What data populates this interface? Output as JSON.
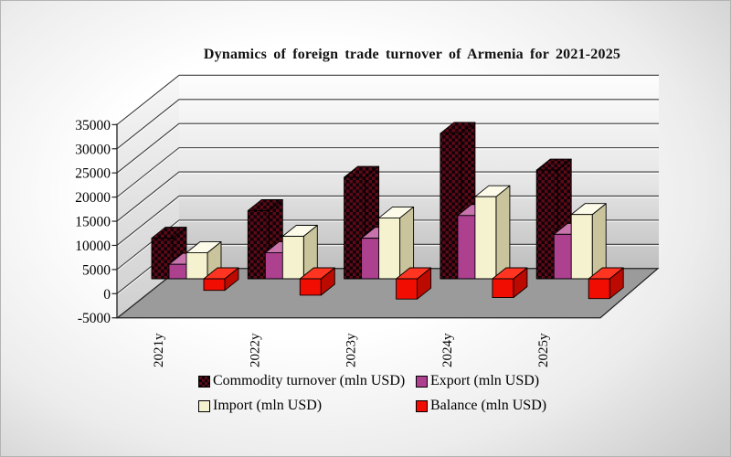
{
  "chart_data": {
    "type": "bar",
    "is_3d": true,
    "title": "Dynamics of foreign trade turnover of Armenia for 2021-2025",
    "categories": [
      "2021y",
      "2022y",
      "2023y",
      "2024y",
      "2025y"
    ],
    "series": [
      {
        "key": "commodity-turnover",
        "name": "Commodity turnover (mln USD)",
        "values": [
          8400,
          14100,
          21000,
          30100,
          22500
        ],
        "style": "checkered",
        "front": "#4f060e",
        "top": "#4f060e",
        "side": "#4f060e"
      },
      {
        "key": "export",
        "name": "Export (mln USD)",
        "values": [
          3000,
          5400,
          8400,
          13100,
          9200
        ],
        "style": "solid",
        "front": "#ad4190",
        "top": "#c873ac",
        "side": "#7c2d67"
      },
      {
        "key": "import",
        "name": "Import (mln USD)",
        "values": [
          5400,
          8800,
          12600,
          17000,
          13300
        ],
        "style": "solid",
        "front": "#f5f2cf",
        "top": "#fcfae8",
        "side": "#c9c49b"
      },
      {
        "key": "balance",
        "name": "Balance (mln USD)",
        "values": [
          -2400,
          -3400,
          -4200,
          -3900,
          -4100
        ],
        "style": "solid",
        "front": "#f20d02",
        "top": "#ff3522",
        "side": "#bd0a00"
      }
    ],
    "y_axis": {
      "min": -5000,
      "max": 35000,
      "step": 5000,
      "tick_labels": [
        "35000",
        "30000",
        "25000",
        "20000",
        "15000",
        "10000",
        "5000",
        "0",
        "-5000"
      ]
    },
    "legend_position": "bottom",
    "grid": true,
    "unit": "mln USD"
  },
  "colors": {
    "checker_dark": "#10020a",
    "checker_red": "#5c0a14",
    "floor": "#9b9b9b",
    "gridline": "#3c3c3c",
    "axis": "#222222",
    "text": "#000000"
  }
}
